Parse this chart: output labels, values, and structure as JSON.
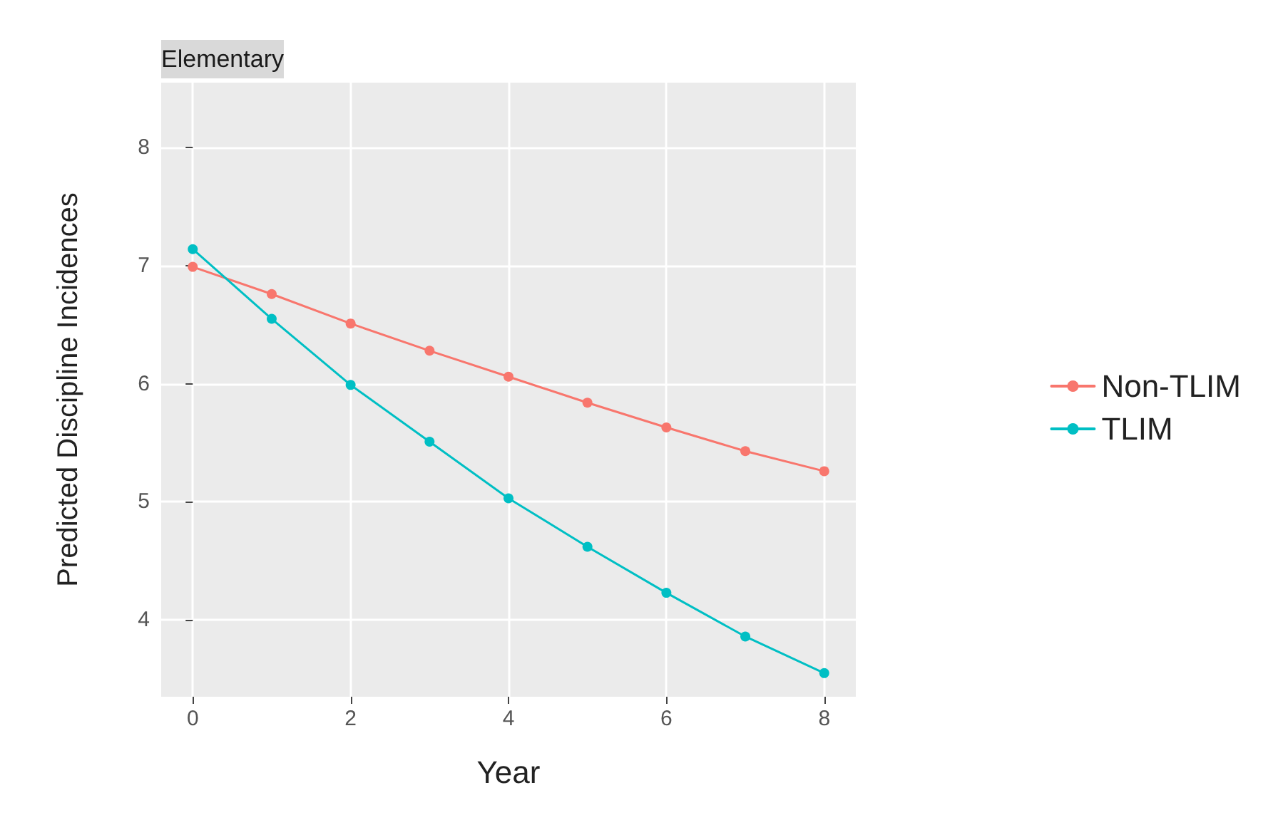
{
  "chart_data": {
    "type": "line",
    "title": "Elementary",
    "xlabel": "Year",
    "ylabel": "Predicted Discipline Incidences",
    "x": [
      0,
      1,
      2,
      3,
      4,
      5,
      6,
      7,
      8
    ],
    "series": [
      {
        "name": "Non-TLIM",
        "color": "#f8766d",
        "values": [
          6.99,
          6.76,
          6.51,
          6.28,
          6.06,
          5.84,
          5.63,
          5.43,
          5.26
        ]
      },
      {
        "name": "TLIM",
        "color": "#00bfc4",
        "values": [
          7.14,
          6.55,
          5.99,
          5.51,
          5.03,
          4.62,
          4.23,
          3.86,
          3.55
        ]
      }
    ],
    "xlim": [
      -0.4,
      8.4
    ],
    "xticks": [
      0,
      2,
      4,
      6,
      8
    ],
    "ylim": [
      3.35,
      8.55
    ],
    "yticks": [
      4,
      5,
      6,
      7,
      8
    ],
    "grid": true,
    "legend": "right",
    "marker": "circle",
    "line_style": "solid"
  }
}
